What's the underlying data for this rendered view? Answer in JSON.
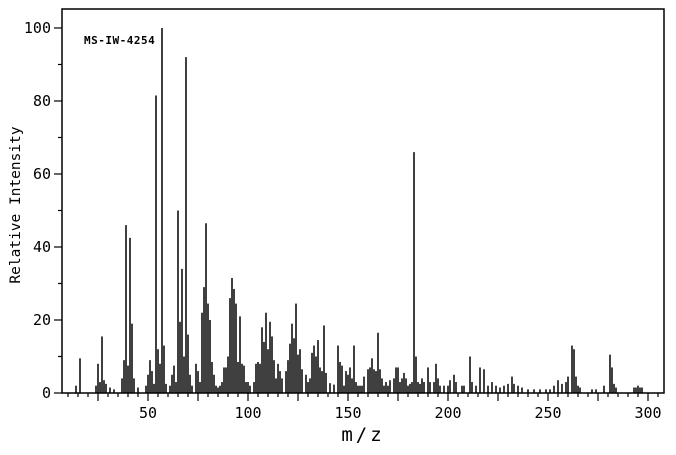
{
  "annotation": {
    "text": "MS-IW-4254"
  },
  "axes": {
    "x_label": "m/z",
    "y_label": "Relative Intensity",
    "x_ticks": [
      50,
      100,
      150,
      200,
      250,
      300
    ],
    "y_ticks": [
      0,
      20,
      40,
      60,
      80,
      100
    ],
    "x_minor_step": 5,
    "y_minor_step": 10
  },
  "chart_data": {
    "type": "bar",
    "subtype": "mass-spectrum-stick-plot",
    "title": "",
    "xlabel": "m/z",
    "ylabel": "Relative Intensity",
    "xlim": [
      7,
      308
    ],
    "ylim": [
      0,
      105.2
    ],
    "grid": false,
    "legend": "none",
    "annotation": "MS-IW-4254",
    "colors": {
      "peak": "#000000",
      "frame": "#000000",
      "background": "#ffffff"
    },
    "peaks": [
      [
        14,
        2
      ],
      [
        16,
        9.5
      ],
      [
        24,
        2
      ],
      [
        25,
        8
      ],
      [
        26,
        3
      ],
      [
        27,
        15.5
      ],
      [
        28,
        3.5
      ],
      [
        29,
        2.5
      ],
      [
        31,
        1.5
      ],
      [
        33,
        1
      ],
      [
        37,
        4
      ],
      [
        38,
        9
      ],
      [
        39,
        46
      ],
      [
        40,
        7.5
      ],
      [
        41,
        42.5
      ],
      [
        42,
        19
      ],
      [
        43,
        4
      ],
      [
        45,
        1.5
      ],
      [
        49,
        2
      ],
      [
        50,
        5
      ],
      [
        51,
        9
      ],
      [
        52,
        6
      ],
      [
        53,
        2.5
      ],
      [
        54,
        81.5
      ],
      [
        55,
        12
      ],
      [
        56,
        8
      ],
      [
        57,
        100
      ],
      [
        58,
        13
      ],
      [
        59,
        2.5
      ],
      [
        61,
        2
      ],
      [
        62,
        5
      ],
      [
        63,
        7.5
      ],
      [
        64,
        3
      ],
      [
        65,
        50
      ],
      [
        66,
        19.5
      ],
      [
        67,
        34
      ],
      [
        68,
        10
      ],
      [
        69,
        92
      ],
      [
        70,
        16
      ],
      [
        71,
        5
      ],
      [
        72,
        2
      ],
      [
        74,
        8
      ],
      [
        75,
        6
      ],
      [
        76,
        3
      ],
      [
        77,
        22
      ],
      [
        78,
        29
      ],
      [
        79,
        46.5
      ],
      [
        80,
        24.5
      ],
      [
        81,
        20
      ],
      [
        82,
        8.5
      ],
      [
        83,
        5
      ],
      [
        84,
        2
      ],
      [
        85,
        1.5
      ],
      [
        86,
        2
      ],
      [
        87,
        3
      ],
      [
        88,
        7
      ],
      [
        89,
        7
      ],
      [
        90,
        10
      ],
      [
        91,
        26
      ],
      [
        92,
        31.5
      ],
      [
        93,
        28.5
      ],
      [
        94,
        24.5
      ],
      [
        95,
        8.5
      ],
      [
        96,
        21
      ],
      [
        97,
        8
      ],
      [
        98,
        7.5
      ],
      [
        99,
        3
      ],
      [
        100,
        3
      ],
      [
        101,
        2
      ],
      [
        103,
        3
      ],
      [
        104,
        8
      ],
      [
        105,
        8.5
      ],
      [
        106,
        8
      ],
      [
        107,
        18
      ],
      [
        108,
        14
      ],
      [
        109,
        22
      ],
      [
        110,
        12
      ],
      [
        111,
        19.5
      ],
      [
        112,
        15.5
      ],
      [
        113,
        9
      ],
      [
        114,
        4
      ],
      [
        115,
        8
      ],
      [
        116,
        6
      ],
      [
        117,
        4
      ],
      [
        119,
        6
      ],
      [
        120,
        9
      ],
      [
        121,
        13.5
      ],
      [
        122,
        19
      ],
      [
        123,
        15
      ],
      [
        124,
        24.5
      ],
      [
        125,
        10.5
      ],
      [
        126,
        12
      ],
      [
        127,
        6.5
      ],
      [
        129,
        5
      ],
      [
        130,
        3
      ],
      [
        131,
        4
      ],
      [
        132,
        11
      ],
      [
        133,
        13
      ],
      [
        134,
        10
      ],
      [
        135,
        14.5
      ],
      [
        136,
        7
      ],
      [
        137,
        6
      ],
      [
        138,
        18.5
      ],
      [
        139,
        5.5
      ],
      [
        141,
        2.7
      ],
      [
        143,
        2.3
      ],
      [
        145,
        13
      ],
      [
        146,
        8.5
      ],
      [
        147,
        7.5
      ],
      [
        148,
        2
      ],
      [
        149,
        6
      ],
      [
        150,
        5
      ],
      [
        151,
        7
      ],
      [
        152,
        4
      ],
      [
        153,
        13
      ],
      [
        154,
        3
      ],
      [
        155,
        2
      ],
      [
        156,
        2
      ],
      [
        157,
        2
      ],
      [
        158,
        4.5
      ],
      [
        160,
        6.5
      ],
      [
        161,
        7
      ],
      [
        162,
        9.5
      ],
      [
        163,
        6.5
      ],
      [
        164,
        6
      ],
      [
        165,
        16.5
      ],
      [
        166,
        6.5
      ],
      [
        167,
        4
      ],
      [
        168,
        2
      ],
      [
        169,
        3
      ],
      [
        170,
        2
      ],
      [
        171,
        3.5
      ],
      [
        173,
        4
      ],
      [
        174,
        7
      ],
      [
        175,
        7
      ],
      [
        176,
        3
      ],
      [
        177,
        4
      ],
      [
        178,
        5.5
      ],
      [
        179,
        4
      ],
      [
        180,
        2
      ],
      [
        181,
        2.5
      ],
      [
        182,
        3
      ],
      [
        183,
        66
      ],
      [
        184,
        10
      ],
      [
        185,
        3
      ],
      [
        186,
        2.5
      ],
      [
        187,
        4
      ],
      [
        188,
        3
      ],
      [
        190,
        7
      ],
      [
        191,
        3
      ],
      [
        193,
        3
      ],
      [
        194,
        8
      ],
      [
        195,
        4
      ],
      [
        196,
        2
      ],
      [
        198,
        2
      ],
      [
        200,
        2
      ],
      [
        201,
        3.5
      ],
      [
        203,
        5
      ],
      [
        204,
        3
      ],
      [
        207,
        2
      ],
      [
        208,
        2
      ],
      [
        211,
        10
      ],
      [
        212,
        3
      ],
      [
        214,
        2
      ],
      [
        216,
        7
      ],
      [
        218,
        6.5
      ],
      [
        220,
        2
      ],
      [
        222,
        3
      ],
      [
        224,
        2
      ],
      [
        226,
        1.5
      ],
      [
        228,
        2
      ],
      [
        230,
        2.5
      ],
      [
        232,
        4.5
      ],
      [
        233,
        2.5
      ],
      [
        235,
        2
      ],
      [
        237,
        1.5
      ],
      [
        240,
        1
      ],
      [
        243,
        1
      ],
      [
        246,
        1
      ],
      [
        249,
        1
      ],
      [
        251,
        1
      ],
      [
        253,
        2
      ],
      [
        255,
        3.5
      ],
      [
        257,
        2.5
      ],
      [
        259,
        3
      ],
      [
        260,
        4.5
      ],
      [
        262,
        13
      ],
      [
        263,
        12
      ],
      [
        264,
        4.5
      ],
      [
        265,
        2
      ],
      [
        266,
        1.5
      ],
      [
        272,
        1
      ],
      [
        274,
        1
      ],
      [
        278,
        2
      ],
      [
        281,
        10.5
      ],
      [
        282,
        7
      ],
      [
        283,
        2.5
      ],
      [
        284,
        1.5
      ],
      [
        293,
        1.5
      ],
      [
        294,
        1.5
      ],
      [
        295,
        2
      ],
      [
        296,
        1.5
      ],
      [
        297,
        1.5
      ]
    ]
  }
}
